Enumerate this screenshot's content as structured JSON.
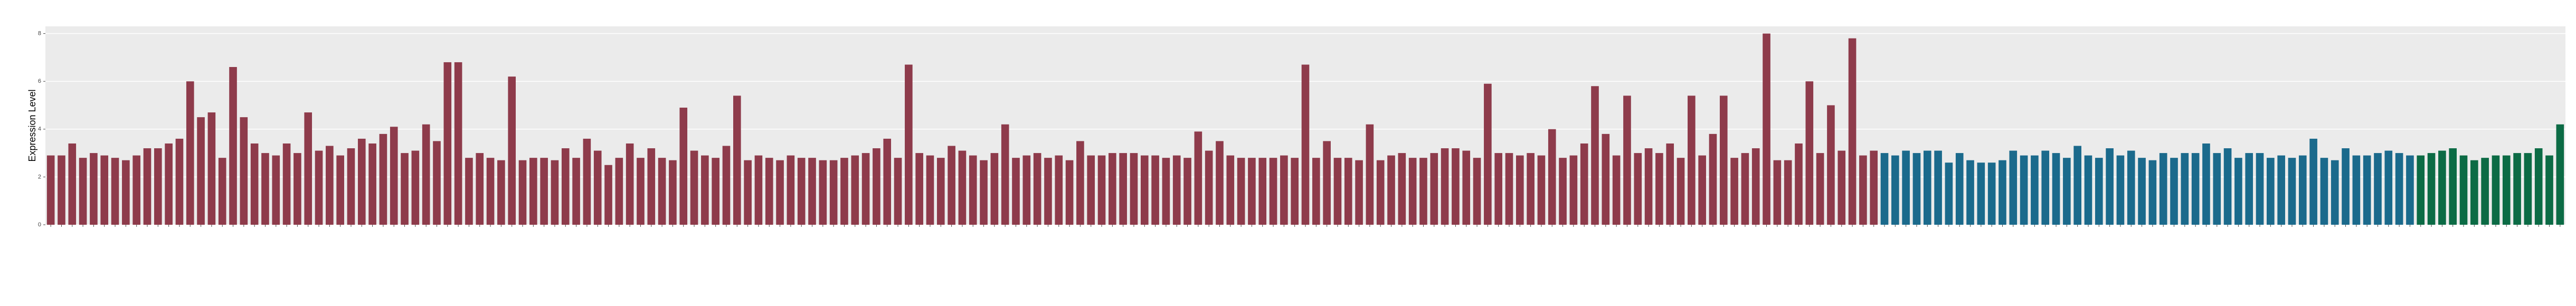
{
  "chart_data": {
    "type": "bar",
    "y_label": "Expression Level",
    "categories": [
      null,
      null,
      null,
      null,
      null,
      null,
      null,
      null,
      null,
      null,
      null,
      null,
      null,
      null,
      null,
      null,
      null,
      null,
      null,
      null,
      null,
      null,
      null,
      null,
      null,
      null,
      null,
      null,
      null,
      null,
      null,
      null,
      null,
      null,
      null,
      null,
      null,
      null,
      null,
      null,
      null,
      null,
      null,
      null,
      null,
      null,
      null,
      null,
      null,
      null,
      null,
      null,
      null,
      null,
      null,
      null,
      null,
      null,
      null,
      null,
      null,
      null,
      null,
      null,
      null,
      null,
      null,
      null,
      null,
      null,
      null,
      null,
      null,
      null,
      null,
      null,
      null,
      null,
      null,
      null,
      null,
      null,
      null,
      null,
      null,
      null,
      null,
      null,
      null,
      null,
      null,
      null,
      null,
      null,
      null,
      null,
      null,
      null,
      null,
      null,
      null,
      null,
      null,
      null,
      null,
      null,
      null,
      null,
      null,
      null,
      null,
      null,
      null,
      null,
      null,
      null,
      null,
      null,
      null,
      null,
      null,
      null,
      null,
      null,
      null,
      null,
      null,
      null,
      null,
      null,
      null,
      null,
      null,
      null,
      null,
      null,
      null,
      null,
      null,
      null,
      null,
      null,
      null,
      null,
      null,
      null,
      null,
      null,
      null,
      null,
      null,
      null,
      null,
      null,
      null,
      null,
      null,
      null,
      null,
      null,
      null,
      null,
      null,
      null,
      null,
      null,
      null,
      null,
      null,
      null,
      null,
      null,
      null,
      null,
      null,
      null,
      null,
      null,
      null,
      null,
      null,
      null,
      null,
      null,
      null,
      null,
      null,
      null,
      null,
      null,
      null,
      null,
      null,
      null,
      null,
      null,
      null,
      null,
      null,
      null,
      null,
      null,
      null,
      null,
      null,
      null,
      null,
      null,
      null,
      null,
      null,
      null,
      null,
      null,
      null,
      null,
      null,
      null,
      null,
      null,
      null,
      null,
      null,
      null,
      null,
      null,
      null,
      null,
      null,
      null,
      null,
      null,
      null,
      null,
      null
    ],
    "series": [
      {
        "color": "#8e3b4b",
        "values": [
          2.9,
          2.9,
          3.4,
          2.8,
          3.0,
          2.9,
          2.8,
          2.7,
          2.9,
          3.2,
          3.2,
          3.4,
          3.6,
          6.0,
          4.5,
          4.7,
          2.8,
          6.6,
          4.5,
          3.4,
          3.0,
          2.9,
          3.4,
          3.0,
          4.7,
          3.1,
          3.3,
          2.9,
          3.2,
          3.6,
          3.4,
          3.8,
          4.1,
          3.0,
          3.1,
          4.2,
          3.5,
          6.8,
          6.8,
          2.8,
          3.0,
          2.8,
          2.7,
          6.2,
          2.7,
          2.8,
          2.8,
          2.7,
          3.2,
          2.8,
          3.6,
          3.1,
          2.5,
          2.8,
          3.4,
          2.8,
          3.2,
          2.8,
          2.7,
          4.9,
          3.1,
          2.9,
          2.8,
          3.3,
          5.4,
          2.7,
          2.9,
          2.8,
          2.7,
          2.9,
          2.8,
          2.8,
          2.7,
          2.7,
          2.8,
          2.9,
          3.0,
          3.2,
          3.6,
          2.8,
          6.7,
          3.0,
          2.9,
          2.8,
          3.3,
          3.1,
          2.9,
          2.7,
          3.0,
          4.2,
          2.8,
          2.9,
          3.0,
          2.8,
          2.9,
          2.7,
          3.5,
          2.9,
          2.9,
          3.0,
          3.0,
          3.0,
          2.9,
          2.9,
          2.8,
          2.9,
          2.8,
          3.9,
          3.1,
          3.5,
          2.9,
          2.8,
          2.8,
          2.8,
          2.8,
          2.9,
          2.8,
          6.7,
          2.8,
          3.5,
          2.8,
          2.8,
          2.7,
          4.2,
          2.7,
          2.9,
          3.0,
          2.8,
          2.8,
          3.0,
          3.2,
          3.2,
          3.1,
          2.8,
          5.9,
          3.0,
          3.0,
          2.9,
          3.0,
          2.9,
          4.0,
          2.8,
          2.9,
          3.4,
          5.8,
          3.8,
          2.9,
          5.4,
          3.0,
          3.2,
          3.0,
          3.4,
          2.8,
          5.4,
          2.9,
          3.8,
          5.4,
          2.8,
          3.0,
          3.2,
          8.0,
          2.7,
          2.7,
          3.4,
          6.0,
          3.0,
          5.0,
          3.1,
          7.8,
          2.9,
          3.1,
          null,
          null,
          null,
          null,
          null,
          null,
          null,
          null,
          null,
          null,
          null,
          null,
          null,
          null,
          null,
          null,
          null,
          null,
          null,
          null,
          null,
          null,
          null,
          null,
          null,
          null,
          null,
          null,
          null,
          null,
          null,
          null,
          null,
          null,
          null,
          null,
          null,
          null,
          null,
          null,
          null,
          null,
          null,
          null,
          null,
          null,
          null,
          null,
          null,
          null,
          null,
          null,
          null,
          null,
          null,
          null,
          null,
          null,
          null,
          null,
          null,
          null,
          null,
          null
        ]
      },
      {
        "color": "#1b6a8c",
        "values": [
          null,
          null,
          null,
          null,
          null,
          null,
          null,
          null,
          null,
          null,
          null,
          null,
          null,
          null,
          null,
          null,
          null,
          null,
          null,
          null,
          null,
          null,
          null,
          null,
          null,
          null,
          null,
          null,
          null,
          null,
          null,
          null,
          null,
          null,
          null,
          null,
          null,
          null,
          null,
          null,
          null,
          null,
          null,
          null,
          null,
          null,
          null,
          null,
          null,
          null,
          null,
          null,
          null,
          null,
          null,
          null,
          null,
          null,
          null,
          null,
          null,
          null,
          null,
          null,
          null,
          null,
          null,
          null,
          null,
          null,
          null,
          null,
          null,
          null,
          null,
          null,
          null,
          null,
          null,
          null,
          null,
          null,
          null,
          null,
          null,
          null,
          null,
          null,
          null,
          null,
          null,
          null,
          null,
          null,
          null,
          null,
          null,
          null,
          null,
          null,
          null,
          null,
          null,
          null,
          null,
          null,
          null,
          null,
          null,
          null,
          null,
          null,
          null,
          null,
          null,
          null,
          null,
          null,
          null,
          null,
          null,
          null,
          null,
          null,
          null,
          null,
          null,
          null,
          null,
          null,
          null,
          null,
          null,
          null,
          null,
          null,
          null,
          null,
          null,
          null,
          null,
          null,
          null,
          null,
          null,
          null,
          null,
          null,
          null,
          null,
          null,
          null,
          null,
          null,
          null,
          null,
          null,
          null,
          null,
          null,
          null,
          null,
          null,
          null,
          null,
          null,
          null,
          null,
          null,
          null,
          null,
          3.0,
          2.9,
          3.1,
          3.0,
          3.1,
          3.1,
          2.6,
          3.0,
          2.7,
          2.6,
          2.6,
          2.7,
          3.1,
          2.9,
          2.9,
          3.1,
          3.0,
          2.8,
          3.3,
          2.9,
          2.8,
          3.2,
          2.9,
          3.1,
          2.8,
          2.7,
          3.0,
          2.8,
          3.0,
          3.0,
          3.4,
          3.0,
          3.2,
          2.8,
          3.0,
          3.0,
          2.8,
          2.9,
          2.8,
          2.9,
          3.6,
          2.8,
          2.7,
          3.2,
          2.9,
          2.9,
          3.0,
          3.1,
          3.0,
          2.9,
          null,
          null,
          null,
          null,
          null,
          null,
          null,
          null,
          null,
          null,
          null,
          null,
          null,
          null
        ]
      },
      {
        "color": "#0c6b45",
        "values": [
          null,
          null,
          null,
          null,
          null,
          null,
          null,
          null,
          null,
          null,
          null,
          null,
          null,
          null,
          null,
          null,
          null,
          null,
          null,
          null,
          null,
          null,
          null,
          null,
          null,
          null,
          null,
          null,
          null,
          null,
          null,
          null,
          null,
          null,
          null,
          null,
          null,
          null,
          null,
          null,
          null,
          null,
          null,
          null,
          null,
          null,
          null,
          null,
          null,
          null,
          null,
          null,
          null,
          null,
          null,
          null,
          null,
          null,
          null,
          null,
          null,
          null,
          null,
          null,
          null,
          null,
          null,
          null,
          null,
          null,
          null,
          null,
          null,
          null,
          null,
          null,
          null,
          null,
          null,
          null,
          null,
          null,
          null,
          null,
          null,
          null,
          null,
          null,
          null,
          null,
          null,
          null,
          null,
          null,
          null,
          null,
          null,
          null,
          null,
          null,
          null,
          null,
          null,
          null,
          null,
          null,
          null,
          null,
          null,
          null,
          null,
          null,
          null,
          null,
          null,
          null,
          null,
          null,
          null,
          null,
          null,
          null,
          null,
          null,
          null,
          null,
          null,
          null,
          null,
          null,
          null,
          null,
          null,
          null,
          null,
          null,
          null,
          null,
          null,
          null,
          null,
          null,
          null,
          null,
          null,
          null,
          null,
          null,
          null,
          null,
          null,
          null,
          null,
          null,
          null,
          null,
          null,
          null,
          null,
          null,
          null,
          null,
          null,
          null,
          null,
          null,
          null,
          null,
          null,
          null,
          null,
          null,
          null,
          null,
          null,
          null,
          null,
          null,
          null,
          null,
          null,
          null,
          null,
          null,
          null,
          null,
          null,
          null,
          null,
          null,
          null,
          null,
          null,
          null,
          null,
          null,
          null,
          null,
          null,
          null,
          null,
          null,
          null,
          null,
          null,
          null,
          null,
          null,
          null,
          null,
          null,
          null,
          null,
          null,
          null,
          null,
          null,
          null,
          null,
          null,
          null,
          2.9,
          3.0,
          3.1,
          3.2,
          2.9,
          2.7,
          2.8,
          2.9,
          2.9,
          3.0,
          3.0,
          3.2,
          2.9,
          4.2
        ]
      }
    ],
    "ylim": [
      0,
      8.3
    ],
    "yticks": [
      0,
      2,
      4,
      6,
      8
    ],
    "grid": true
  }
}
